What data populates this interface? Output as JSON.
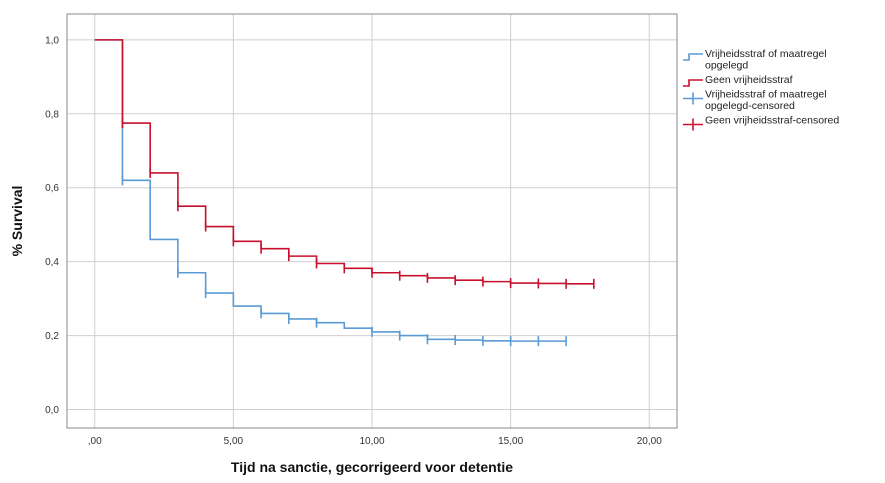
{
  "chart_data": {
    "type": "line",
    "xlabel": "Tijd na sanctie, gecorrigeerd voor detentie",
    "ylabel": "% Survival",
    "xlim": [
      -1,
      21
    ],
    "ylim": [
      -0.05,
      1.07
    ],
    "x_ticks": [
      0,
      5,
      10,
      15,
      20
    ],
    "x_tick_labels": [
      ",00",
      "5,00",
      "10,00",
      "15,00",
      "20,00"
    ],
    "y_ticks": [
      0,
      0.2,
      0.4,
      0.6,
      0.8,
      1.0
    ],
    "y_tick_labels": [
      "0,0",
      "0,2",
      "0,4",
      "0,6",
      "0,8",
      "1,0"
    ],
    "grid": true,
    "legend_position": "right",
    "series": [
      {
        "name": "Vrijheidsstraf of maatregel opgelegd",
        "color": "#5b9bd5",
        "step_x": [
          0,
          1,
          2,
          3,
          4,
          5,
          6,
          7,
          8,
          9,
          10,
          11,
          12,
          13,
          14,
          15,
          16,
          17
        ],
        "step_y": [
          1.0,
          0.62,
          0.46,
          0.37,
          0.315,
          0.28,
          0.26,
          0.245,
          0.235,
          0.22,
          0.21,
          0.2,
          0.19,
          0.188,
          0.186,
          0.185,
          0.185,
          0.185
        ],
        "censored_x": [
          1,
          3,
          4,
          6,
          7,
          8,
          10,
          11,
          12,
          13,
          14,
          15,
          16,
          17
        ]
      },
      {
        "name": "Geen vrijheidsstraf",
        "color": "#c8102e",
        "step_x": [
          0,
          1,
          2,
          3,
          4,
          5,
          6,
          7,
          8,
          9,
          10,
          11,
          12,
          13,
          14,
          15,
          16,
          17,
          18
        ],
        "step_y": [
          1.0,
          0.775,
          0.64,
          0.55,
          0.495,
          0.455,
          0.435,
          0.415,
          0.395,
          0.382,
          0.37,
          0.362,
          0.356,
          0.35,
          0.346,
          0.342,
          0.341,
          0.34,
          0.34
        ],
        "censored_x": [
          1,
          2,
          3,
          4,
          5,
          6,
          7,
          8,
          9,
          10,
          11,
          12,
          13,
          14,
          15,
          16,
          17,
          18
        ]
      }
    ],
    "legend": [
      {
        "key": "s0",
        "kind": "line",
        "color": "#5b9bd5",
        "lines": [
          "Vrijheidsstraf of maatregel",
          "opgelegd"
        ]
      },
      {
        "key": "s1",
        "kind": "line",
        "color": "#c8102e",
        "lines": [
          "Geen vrijheidsstraf"
        ]
      },
      {
        "key": "c0",
        "kind": "censor",
        "color": "#5b9bd5",
        "lines": [
          "Vrijheidsstraf of maatregel",
          "opgelegd-censored"
        ]
      },
      {
        "key": "c1",
        "kind": "censor",
        "color": "#c8102e",
        "lines": [
          "Geen vrijheidsstraf-censored"
        ]
      }
    ]
  }
}
